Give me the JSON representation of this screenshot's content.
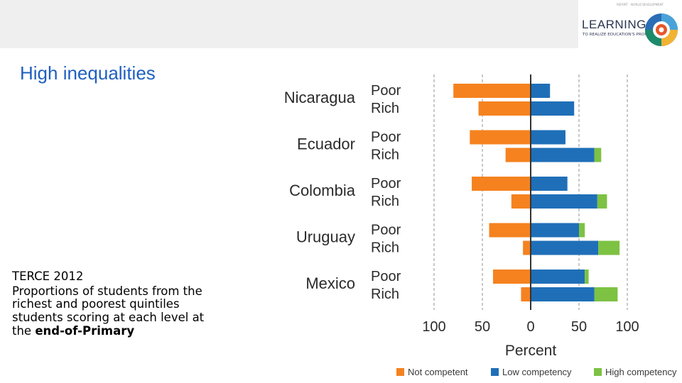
{
  "header": {
    "logo_top_text": "REPORT · WORLD DEVELOPMENT",
    "logo_word": "LEARNING",
    "logo_sub": "TO REALIZE EDUCATION'S PROMISE"
  },
  "title": "High inequalities",
  "caption": {
    "heading": "TERCE 2012",
    "body": "Proportions of students from the richest and poorest quintiles students scoring at each level at the ",
    "bold": "end-of-Primary"
  },
  "colors": {
    "not_competent": "#f5821f",
    "low_competency": "#1f6fb8",
    "high_competency": "#7dc243"
  },
  "chart_data": {
    "type": "bar",
    "orientation": "horizontal-diverging",
    "countries": [
      "Nicaragua",
      "Ecuador",
      "Colombia",
      "Uruguay",
      "Mexico"
    ],
    "groups": [
      "Poor",
      "Rich"
    ],
    "series": [
      {
        "name": "Not competent",
        "side": "negative",
        "values": [
          [
            80,
            54
          ],
          [
            63,
            26
          ],
          [
            61,
            20
          ],
          [
            43,
            8
          ],
          [
            39,
            10
          ]
        ]
      },
      {
        "name": "Low competency",
        "side": "positive",
        "values": [
          [
            20,
            45
          ],
          [
            36,
            66
          ],
          [
            38,
            69
          ],
          [
            50,
            70
          ],
          [
            56,
            66
          ]
        ]
      },
      {
        "name": "High competency",
        "side": "positive",
        "values": [
          [
            0,
            0
          ],
          [
            0,
            7
          ],
          [
            0,
            10
          ],
          [
            6,
            22
          ],
          [
            4,
            24
          ]
        ]
      }
    ],
    "x_ticks": [
      "100",
      "50",
      "0",
      "50",
      "100"
    ],
    "xlabel": "Percent",
    "xlim": [
      -100,
      100
    ],
    "gridlines": [
      -100,
      -50,
      50,
      100
    ],
    "legend_position": "bottom"
  }
}
